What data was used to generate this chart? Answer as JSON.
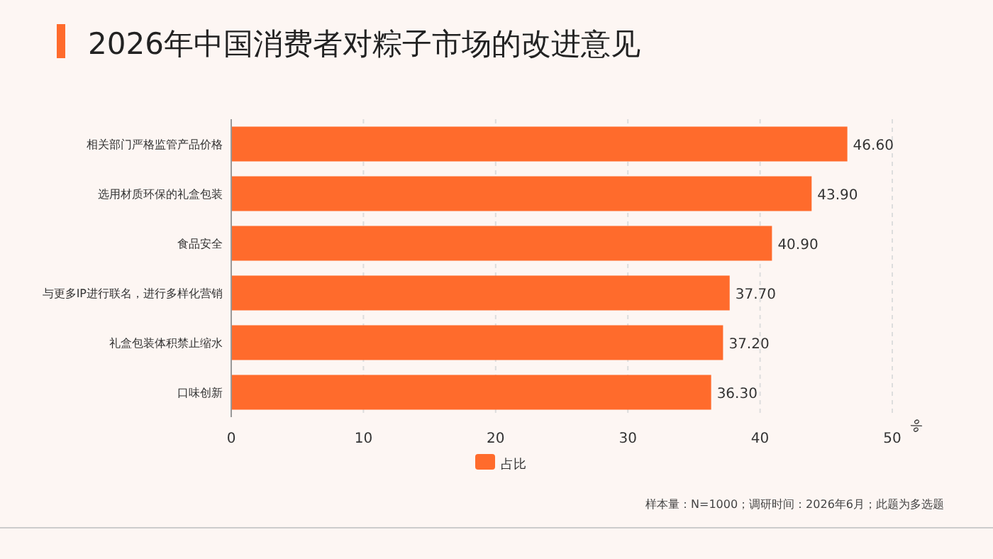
{
  "chart_data": {
    "type": "bar",
    "orientation": "horizontal",
    "title": "2026年中国消费者对粽子市场的改进意见",
    "categories": [
      "相关部门严格监管产品价格",
      "选用材质环保的礼盒包装",
      "食品安全",
      "与更多IP进行联名，进行多样化营销",
      "礼盒包装体积禁止缩水",
      "口味创新"
    ],
    "series": [
      {
        "name": "占比",
        "color": "#ff6b2c",
        "values": [
          46.6,
          43.9,
          40.9,
          37.7,
          37.2,
          36.3
        ],
        "value_labels": [
          "46.60",
          "43.90",
          "40.90",
          "37.70",
          "37.20",
          "36.30"
        ]
      }
    ],
    "xlim": [
      0,
      50
    ],
    "xticks": [
      0,
      10,
      20,
      30,
      40,
      50
    ],
    "xlabel": "%",
    "grid": "x",
    "legend": "bottom",
    "annotations": [
      "样本量：N=1000；调研时间：2026年6月；此题为多选题"
    ]
  }
}
